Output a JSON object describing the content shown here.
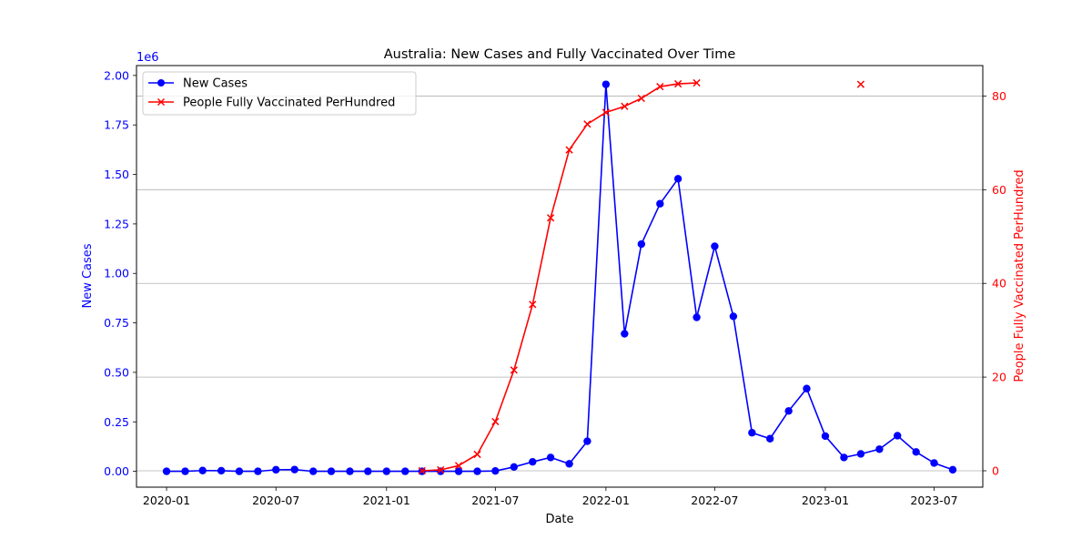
{
  "chart_data": {
    "type": "line",
    "title": "Australia: New Cases and Fully Vaccinated Over Time",
    "xlabel": "Date",
    "ylabel_left": "New Cases",
    "ylabel_right": "People Fully Vaccinated PerHundred",
    "left_axis_multiplier": "1e6",
    "x_ticks": [
      "2020-01",
      "2020-07",
      "2021-01",
      "2021-07",
      "2022-01",
      "2022-07",
      "2023-01",
      "2023-07"
    ],
    "y_left_ticks": [
      "0.00",
      "0.25",
      "0.50",
      "0.75",
      "1.00",
      "1.25",
      "1.50",
      "1.75",
      "2.00"
    ],
    "y_right_ticks": [
      "0",
      "20",
      "40",
      "60",
      "80"
    ],
    "ylim_left": [
      -0.08,
      2.05
    ],
    "ylim_right": [
      -3.5,
      86.5
    ],
    "xlim": [
      "2019-11-12",
      "2023-09-20"
    ],
    "grid": "horizontal lines at right-axis ticks",
    "legend_position": "top-left",
    "colors": {
      "cases": "#0000ff",
      "vaccinated": "#ff0000",
      "grid": "#b0b0b0",
      "text": "#000000"
    },
    "series": [
      {
        "name": "New Cases",
        "axis": "left",
        "marker": "circle",
        "units": "millions",
        "x": [
          "2020-01-01",
          "2020-02-01",
          "2020-03-01",
          "2020-04-01",
          "2020-05-01",
          "2020-06-01",
          "2020-07-01",
          "2020-08-01",
          "2020-09-01",
          "2020-10-01",
          "2020-11-01",
          "2020-12-01",
          "2021-01-01",
          "2021-02-01",
          "2021-03-01",
          "2021-04-01",
          "2021-05-01",
          "2021-06-01",
          "2021-07-01",
          "2021-08-01",
          "2021-09-01",
          "2021-10-01",
          "2021-11-01",
          "2021-12-01",
          "2022-01-01",
          "2022-02-01",
          "2022-03-01",
          "2022-04-01",
          "2022-05-01",
          "2022-06-01",
          "2022-07-01",
          "2022-08-01",
          "2022-09-01",
          "2022-10-01",
          "2022-11-01",
          "2022-12-01",
          "2023-01-01",
          "2023-02-01",
          "2023-03-01",
          "2023-04-01",
          "2023-05-01",
          "2023-06-01",
          "2023-07-01",
          "2023-08-01"
        ],
        "values": [
          0.0,
          0.0,
          0.004,
          0.003,
          0.0,
          0.0,
          0.008,
          0.009,
          0.0,
          0.0,
          0.0,
          0.0,
          0.0,
          0.0,
          0.0,
          0.0,
          0.0,
          0.0,
          0.002,
          0.022,
          0.048,
          0.07,
          0.038,
          0.152,
          1.955,
          0.695,
          1.148,
          1.352,
          1.478,
          0.778,
          1.137,
          0.783,
          0.195,
          0.165,
          0.305,
          0.418,
          0.178,
          0.07,
          0.088,
          0.112,
          0.18,
          0.098,
          0.042,
          0.008
        ]
      },
      {
        "name": "People Fully Vaccinated PerHundred",
        "axis": "right",
        "marker": "x",
        "x": [
          "2021-03-01",
          "2021-04-01",
          "2021-05-01",
          "2021-06-01",
          "2021-07-01",
          "2021-08-01",
          "2021-09-01",
          "2021-10-01",
          "2021-11-01",
          "2021-12-01",
          "2022-01-01",
          "2022-02-01",
          "2022-03-01",
          "2022-04-01",
          "2022-05-01",
          "2022-06-01"
        ],
        "values": [
          0.0,
          0.2,
          1.1,
          3.5,
          10.5,
          21.5,
          35.5,
          54.0,
          68.5,
          74.0,
          76.5,
          77.8,
          79.5,
          82.0,
          82.6,
          82.8
        ]
      },
      {
        "name": "People Fully Vaccinated PerHundred",
        "axis": "right",
        "marker": "x",
        "show_in_legend": false,
        "x": [
          "2023-03-01"
        ],
        "values": [
          82.5
        ]
      }
    ]
  }
}
